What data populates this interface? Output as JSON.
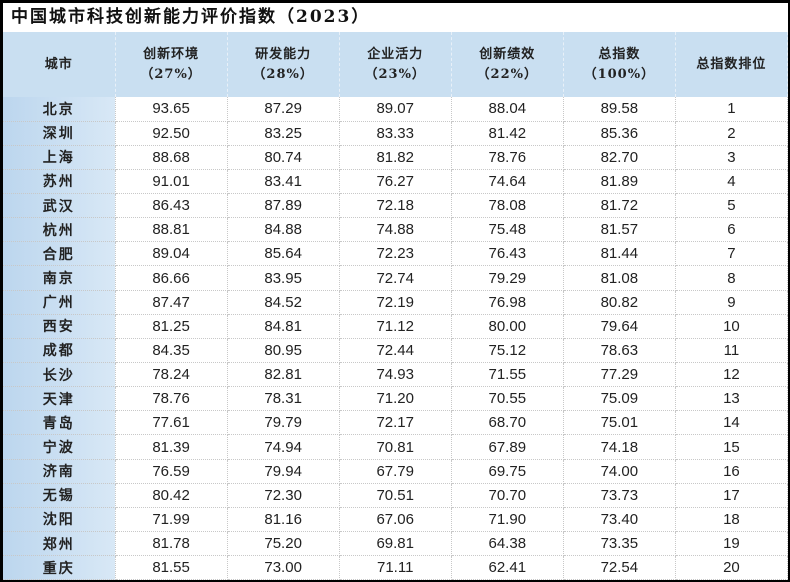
{
  "title": "中国城市科技创新能力评价指数（2023）",
  "headers": [
    {
      "line1": "城市",
      "line2": ""
    },
    {
      "line1": "创新环境",
      "line2": "（27%）"
    },
    {
      "line1": "研发能力",
      "line2": "（28%）"
    },
    {
      "line1": "企业活力",
      "line2": "（23%）"
    },
    {
      "line1": "创新绩效",
      "line2": "（22%）"
    },
    {
      "line1": "总指数",
      "line2": "（100%）"
    },
    {
      "line1": "总指数排位",
      "line2": ""
    }
  ],
  "rows": [
    [
      "北京",
      "93.65",
      "87.29",
      "89.07",
      "88.04",
      "89.58",
      "1"
    ],
    [
      "深圳",
      "92.50",
      "83.25",
      "83.33",
      "81.42",
      "85.36",
      "2"
    ],
    [
      "上海",
      "88.68",
      "80.74",
      "81.82",
      "78.76",
      "82.70",
      "3"
    ],
    [
      "苏州",
      "91.01",
      "83.41",
      "76.27",
      "74.64",
      "81.89",
      "4"
    ],
    [
      "武汉",
      "86.43",
      "87.89",
      "72.18",
      "78.08",
      "81.72",
      "5"
    ],
    [
      "杭州",
      "88.81",
      "84.88",
      "74.88",
      "75.48",
      "81.57",
      "6"
    ],
    [
      "合肥",
      "89.04",
      "85.64",
      "72.23",
      "76.43",
      "81.44",
      "7"
    ],
    [
      "南京",
      "86.66",
      "83.95",
      "72.74",
      "79.29",
      "81.08",
      "8"
    ],
    [
      "广州",
      "87.47",
      "84.52",
      "72.19",
      "76.98",
      "80.82",
      "9"
    ],
    [
      "西安",
      "81.25",
      "84.81",
      "71.12",
      "80.00",
      "79.64",
      "10"
    ],
    [
      "成都",
      "84.35",
      "80.95",
      "72.44",
      "75.12",
      "78.63",
      "11"
    ],
    [
      "长沙",
      "78.24",
      "82.81",
      "74.93",
      "71.55",
      "77.29",
      "12"
    ],
    [
      "天津",
      "78.76",
      "78.31",
      "71.20",
      "70.55",
      "75.09",
      "13"
    ],
    [
      "青岛",
      "77.61",
      "79.79",
      "72.17",
      "68.70",
      "75.01",
      "14"
    ],
    [
      "宁波",
      "81.39",
      "74.94",
      "70.81",
      "67.89",
      "74.18",
      "15"
    ],
    [
      "济南",
      "76.59",
      "79.94",
      "67.79",
      "69.75",
      "74.00",
      "16"
    ],
    [
      "无锡",
      "80.42",
      "72.30",
      "70.51",
      "70.70",
      "73.73",
      "17"
    ],
    [
      "沈阳",
      "71.99",
      "81.16",
      "67.06",
      "71.90",
      "73.40",
      "18"
    ],
    [
      "郑州",
      "81.78",
      "75.20",
      "69.81",
      "64.38",
      "73.35",
      "19"
    ],
    [
      "重庆",
      "81.55",
      "73.00",
      "71.11",
      "62.41",
      "72.54",
      "20"
    ]
  ]
}
